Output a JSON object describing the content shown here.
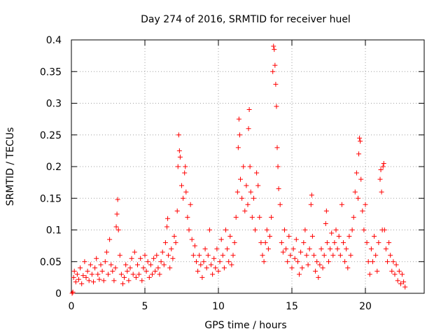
{
  "chart_data": {
    "type": "scatter",
    "title": "Day 274 of 2016, SRMTID for receiver huel",
    "xlabel": "GPS time / hours",
    "ylabel": "SRMTID / TECUs",
    "xlim": [
      0,
      24
    ],
    "ylim": [
      0,
      0.4
    ],
    "xticks": [
      0,
      5,
      10,
      15,
      20
    ],
    "xtick_labels": [
      "0",
      "5",
      "10",
      "15",
      "20"
    ],
    "yticks": [
      0,
      0.05,
      0.1,
      0.15,
      0.2,
      0.25,
      0.3,
      0.35,
      0.4
    ],
    "ytick_labels": [
      "0",
      "0.05",
      "0.1",
      "0.15",
      "0.2",
      "0.25",
      "0.3",
      "0.35",
      "0.4"
    ],
    "grid": true,
    "marker": "plus",
    "color": "#ff0000",
    "series": [
      {
        "name": "SRMTID",
        "points": [
          [
            0.05,
            0.0
          ],
          [
            0.1,
            0.002
          ],
          [
            0.15,
            0.025
          ],
          [
            0.2,
            0.035
          ],
          [
            0.3,
            0.018
          ],
          [
            0.4,
            0.03
          ],
          [
            0.5,
            0.022
          ],
          [
            0.6,
            0.04
          ],
          [
            0.7,
            0.015
          ],
          [
            0.8,
            0.028
          ],
          [
            0.9,
            0.05
          ],
          [
            1.0,
            0.025
          ],
          [
            1.1,
            0.035
          ],
          [
            1.2,
            0.02
          ],
          [
            1.3,
            0.045
          ],
          [
            1.4,
            0.03
          ],
          [
            1.5,
            0.018
          ],
          [
            1.6,
            0.04
          ],
          [
            1.7,
            0.055
          ],
          [
            1.8,
            0.03
          ],
          [
            1.9,
            0.022
          ],
          [
            2.0,
            0.045
          ],
          [
            2.1,
            0.035
          ],
          [
            2.2,
            0.02
          ],
          [
            2.3,
            0.05
          ],
          [
            2.4,
            0.065
          ],
          [
            2.5,
            0.03
          ],
          [
            2.6,
            0.085
          ],
          [
            2.7,
            0.045
          ],
          [
            2.8,
            0.035
          ],
          [
            2.9,
            0.02
          ],
          [
            3.0,
            0.04
          ],
          [
            3.05,
            0.105
          ],
          [
            3.1,
            0.125
          ],
          [
            3.15,
            0.148
          ],
          [
            3.2,
            0.1
          ],
          [
            3.3,
            0.06
          ],
          [
            3.4,
            0.03
          ],
          [
            3.5,
            0.015
          ],
          [
            3.6,
            0.025
          ],
          [
            3.7,
            0.045
          ],
          [
            3.8,
            0.035
          ],
          [
            3.9,
            0.02
          ],
          [
            4.0,
            0.04
          ],
          [
            4.1,
            0.055
          ],
          [
            4.2,
            0.03
          ],
          [
            4.3,
            0.065
          ],
          [
            4.4,
            0.025
          ],
          [
            4.5,
            0.045
          ],
          [
            4.6,
            0.03
          ],
          [
            4.7,
            0.055
          ],
          [
            4.8,
            0.02
          ],
          [
            4.9,
            0.04
          ],
          [
            5.0,
            0.06
          ],
          [
            5.1,
            0.035
          ],
          [
            5.2,
            0.05
          ],
          [
            5.3,
            0.025
          ],
          [
            5.4,
            0.045
          ],
          [
            5.5,
            0.03
          ],
          [
            5.6,
            0.055
          ],
          [
            5.7,
            0.035
          ],
          [
            5.8,
            0.06
          ],
          [
            5.9,
            0.04
          ],
          [
            6.0,
            0.03
          ],
          [
            6.1,
            0.05
          ],
          [
            6.2,
            0.065
          ],
          [
            6.3,
            0.045
          ],
          [
            6.4,
            0.08
          ],
          [
            6.5,
            0.105
          ],
          [
            6.55,
            0.118
          ],
          [
            6.6,
            0.06
          ],
          [
            6.7,
            0.04
          ],
          [
            6.8,
            0.07
          ],
          [
            6.9,
            0.055
          ],
          [
            7.0,
            0.09
          ],
          [
            7.1,
            0.08
          ],
          [
            7.2,
            0.13
          ],
          [
            7.25,
            0.2
          ],
          [
            7.3,
            0.25
          ],
          [
            7.35,
            0.225
          ],
          [
            7.4,
            0.215
          ],
          [
            7.5,
            0.17
          ],
          [
            7.6,
            0.15
          ],
          [
            7.7,
            0.19
          ],
          [
            7.75,
            0.2
          ],
          [
            7.8,
            0.16
          ],
          [
            7.9,
            0.12
          ],
          [
            8.0,
            0.1
          ],
          [
            8.1,
            0.14
          ],
          [
            8.2,
            0.085
          ],
          [
            8.3,
            0.06
          ],
          [
            8.4,
            0.075
          ],
          [
            8.5,
            0.05
          ],
          [
            8.6,
            0.035
          ],
          [
            8.7,
            0.06
          ],
          [
            8.8,
            0.045
          ],
          [
            8.9,
            0.025
          ],
          [
            9.0,
            0.05
          ],
          [
            9.1,
            0.07
          ],
          [
            9.2,
            0.04
          ],
          [
            9.3,
            0.06
          ],
          [
            9.4,
            0.1
          ],
          [
            9.5,
            0.045
          ],
          [
            9.6,
            0.03
          ],
          [
            9.7,
            0.055
          ],
          [
            9.8,
            0.04
          ],
          [
            9.9,
            0.07
          ],
          [
            10.0,
            0.035
          ],
          [
            10.1,
            0.05
          ],
          [
            10.2,
            0.085
          ],
          [
            10.3,
            0.06
          ],
          [
            10.4,
            0.04
          ],
          [
            10.5,
            0.1
          ],
          [
            10.6,
            0.07
          ],
          [
            10.7,
            0.05
          ],
          [
            10.8,
            0.09
          ],
          [
            10.9,
            0.045
          ],
          [
            11.0,
            0.06
          ],
          [
            11.1,
            0.08
          ],
          [
            11.2,
            0.12
          ],
          [
            11.3,
            0.16
          ],
          [
            11.35,
            0.23
          ],
          [
            11.4,
            0.275
          ],
          [
            11.45,
            0.25
          ],
          [
            11.5,
            0.18
          ],
          [
            11.6,
            0.15
          ],
          [
            11.7,
            0.2
          ],
          [
            11.8,
            0.13
          ],
          [
            11.9,
            0.17
          ],
          [
            12.0,
            0.14
          ],
          [
            12.05,
            0.26
          ],
          [
            12.1,
            0.29
          ],
          [
            12.15,
            0.2
          ],
          [
            12.2,
            0.16
          ],
          [
            12.3,
            0.12
          ],
          [
            12.4,
            0.15
          ],
          [
            12.5,
            0.1
          ],
          [
            12.6,
            0.19
          ],
          [
            12.7,
            0.17
          ],
          [
            12.8,
            0.12
          ],
          [
            12.9,
            0.08
          ],
          [
            13.0,
            0.06
          ],
          [
            13.1,
            0.05
          ],
          [
            13.2,
            0.08
          ],
          [
            13.3,
            0.1
          ],
          [
            13.4,
            0.07
          ],
          [
            13.5,
            0.09
          ],
          [
            13.6,
            0.12
          ],
          [
            13.7,
            0.35
          ],
          [
            13.75,
            0.39
          ],
          [
            13.8,
            0.385
          ],
          [
            13.85,
            0.36
          ],
          [
            13.9,
            0.33
          ],
          [
            13.95,
            0.295
          ],
          [
            14.0,
            0.23
          ],
          [
            14.05,
            0.2
          ],
          [
            14.1,
            0.165
          ],
          [
            14.2,
            0.14
          ],
          [
            14.3,
            0.08
          ],
          [
            14.4,
            0.065
          ],
          [
            14.5,
            0.1
          ],
          [
            14.6,
            0.07
          ],
          [
            14.7,
            0.05
          ],
          [
            14.8,
            0.09
          ],
          [
            14.9,
            0.06
          ],
          [
            15.0,
            0.04
          ],
          [
            15.1,
            0.07
          ],
          [
            15.2,
            0.055
          ],
          [
            15.3,
            0.085
          ],
          [
            15.4,
            0.05
          ],
          [
            15.5,
            0.03
          ],
          [
            15.6,
            0.065
          ],
          [
            15.7,
            0.04
          ],
          [
            15.8,
            0.08
          ],
          [
            15.9,
            0.1
          ],
          [
            16.0,
            0.06
          ],
          [
            16.1,
            0.045
          ],
          [
            16.2,
            0.07
          ],
          [
            16.3,
            0.14
          ],
          [
            16.35,
            0.155
          ],
          [
            16.4,
            0.09
          ],
          [
            16.5,
            0.06
          ],
          [
            16.6,
            0.035
          ],
          [
            16.7,
            0.05
          ],
          [
            16.8,
            0.025
          ],
          [
            16.9,
            0.045
          ],
          [
            17.0,
            0.07
          ],
          [
            17.1,
            0.04
          ],
          [
            17.2,
            0.06
          ],
          [
            17.3,
            0.11
          ],
          [
            17.35,
            0.13
          ],
          [
            17.4,
            0.08
          ],
          [
            17.5,
            0.05
          ],
          [
            17.6,
            0.07
          ],
          [
            17.7,
            0.095
          ],
          [
            17.8,
            0.06
          ],
          [
            17.9,
            0.08
          ],
          [
            18.0,
            0.1
          ],
          [
            18.1,
            0.07
          ],
          [
            18.2,
            0.09
          ],
          [
            18.3,
            0.06
          ],
          [
            18.4,
            0.14
          ],
          [
            18.5,
            0.08
          ],
          [
            18.6,
            0.05
          ],
          [
            18.7,
            0.07
          ],
          [
            18.8,
            0.04
          ],
          [
            18.9,
            0.09
          ],
          [
            19.0,
            0.06
          ],
          [
            19.1,
            0.1
          ],
          [
            19.2,
            0.12
          ],
          [
            19.3,
            0.16
          ],
          [
            19.4,
            0.19
          ],
          [
            19.5,
            0.15
          ],
          [
            19.55,
            0.22
          ],
          [
            19.6,
            0.245
          ],
          [
            19.65,
            0.24
          ],
          [
            19.7,
            0.18
          ],
          [
            19.8,
            0.13
          ],
          [
            19.9,
            0.1
          ],
          [
            20.0,
            0.14
          ],
          [
            20.1,
            0.08
          ],
          [
            20.2,
            0.05
          ],
          [
            20.3,
            0.03
          ],
          [
            20.4,
            0.07
          ],
          [
            20.5,
            0.05
          ],
          [
            20.6,
            0.09
          ],
          [
            20.7,
            0.06
          ],
          [
            20.8,
            0.035
          ],
          [
            20.9,
            0.08
          ],
          [
            21.0,
            0.18
          ],
          [
            21.05,
            0.195
          ],
          [
            21.1,
            0.16
          ],
          [
            21.15,
            0.1
          ],
          [
            21.2,
            0.2
          ],
          [
            21.25,
            0.205
          ],
          [
            21.3,
            0.1
          ],
          [
            21.4,
            0.07
          ],
          [
            21.5,
            0.05
          ],
          [
            21.6,
            0.08
          ],
          [
            21.7,
            0.06
          ],
          [
            21.8,
            0.035
          ],
          [
            21.9,
            0.05
          ],
          [
            22.0,
            0.03
          ],
          [
            22.1,
            0.045
          ],
          [
            22.2,
            0.02
          ],
          [
            22.3,
            0.035
          ],
          [
            22.4,
            0.015
          ],
          [
            22.5,
            0.03
          ],
          [
            22.6,
            0.018
          ],
          [
            22.7,
            0.01
          ]
        ]
      }
    ]
  }
}
